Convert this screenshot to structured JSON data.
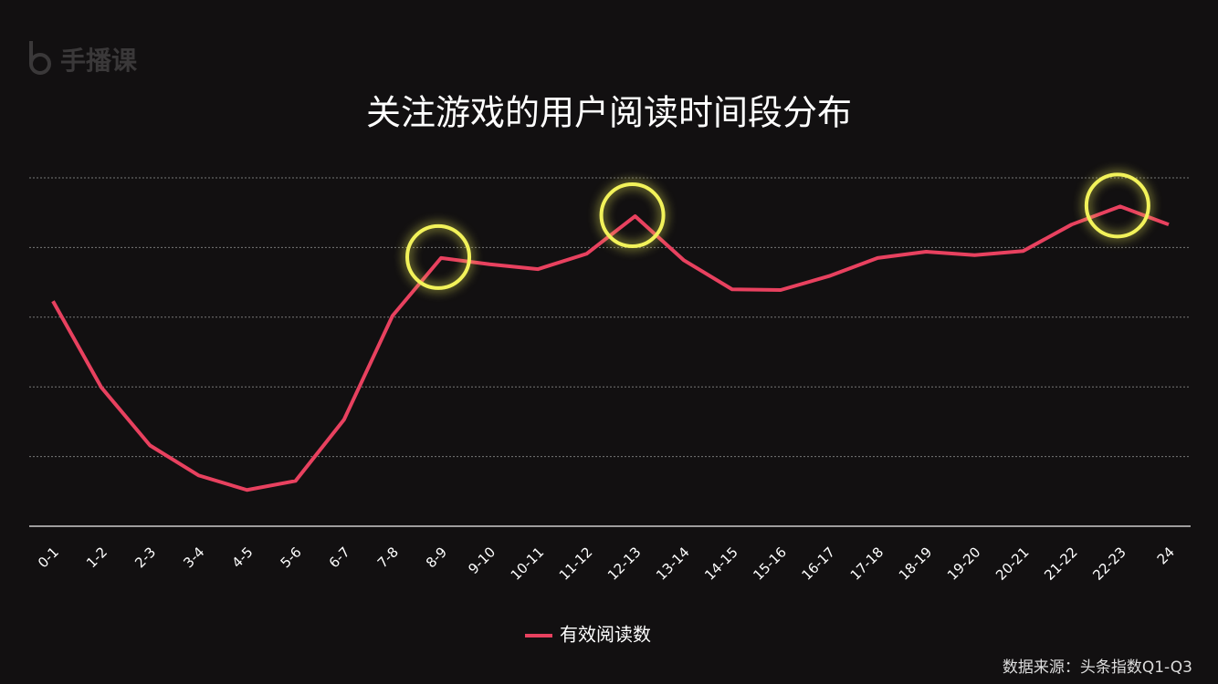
{
  "logo": "手播课",
  "source": "数据来源：头条指数Q1-Q3",
  "chart_data": {
    "type": "line",
    "title": "关注游戏的用户阅读时间段分布",
    "categories": [
      "0-1",
      "1-2",
      "2-3",
      "3-4",
      "4-5",
      "5-6",
      "6-7",
      "7-8",
      "8-9",
      "9-10",
      "10-11",
      "11-12",
      "12-13",
      "13-14",
      "14-15",
      "15-16",
      "16-17",
      "17-18",
      "18-19",
      "19-20",
      "20-21",
      "21-22",
      "22-23",
      "24"
    ],
    "series": [
      {
        "name": "有效阅读数",
        "color": "#e8415f",
        "values": [
          3.23,
          1.99,
          1.16,
          0.73,
          0.52,
          0.65,
          1.53,
          3.02,
          3.85,
          3.76,
          3.69,
          3.91,
          4.45,
          3.82,
          3.4,
          3.39,
          3.59,
          3.85,
          3.94,
          3.89,
          3.95,
          4.33,
          4.59,
          4.33
        ]
      }
    ],
    "ylim": [
      0,
      5
    ],
    "gridlines": [
      1,
      2,
      3,
      4,
      5
    ],
    "grid": true,
    "highlight": [
      8,
      12,
      22
    ],
    "highlight_color": "#f2f25a",
    "legend": "bottom"
  }
}
